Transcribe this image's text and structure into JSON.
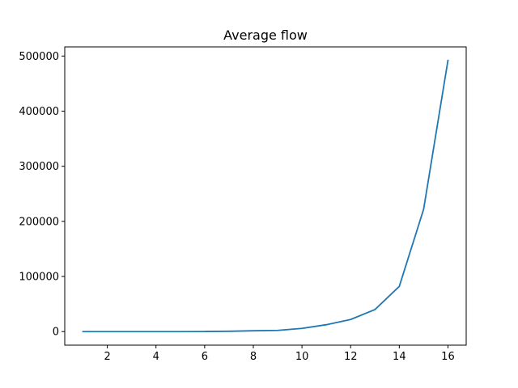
{
  "chart_data": {
    "type": "line",
    "title": "Average flow",
    "xlabel": "",
    "ylabel": "",
    "xlim": [
      0.25,
      16.75
    ],
    "ylim": [
      -24600,
      516600
    ],
    "x_ticks": [
      2,
      4,
      6,
      8,
      10,
      12,
      14,
      16
    ],
    "y_ticks": [
      0,
      100000,
      200000,
      300000,
      400000,
      500000
    ],
    "grid": false,
    "legend": "none",
    "series": [
      {
        "color": "#1f77b4",
        "x": [
          1,
          2,
          3,
          4,
          5,
          6,
          7,
          8,
          9,
          10,
          11,
          12,
          13,
          14,
          15,
          16
        ],
        "values": [
          0,
          0,
          0,
          0,
          0,
          200,
          600,
          1500,
          2200,
          5800,
          12500,
          22000,
          40000,
          82000,
          222000,
          492000
        ]
      }
    ]
  }
}
